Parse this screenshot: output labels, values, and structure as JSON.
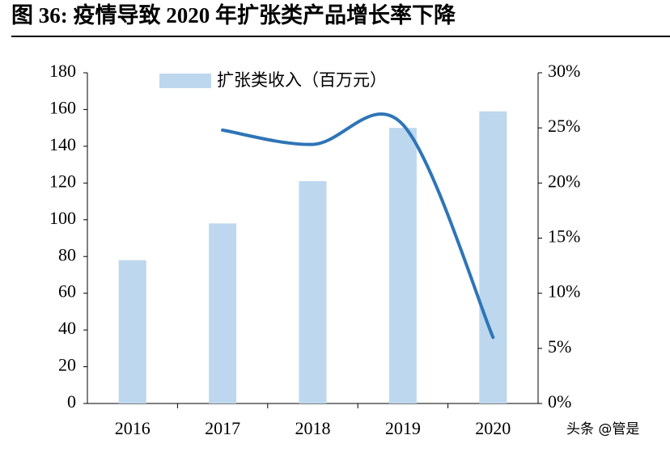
{
  "chart_data": {
    "type": "bar",
    "title": "图 36:  疫情导致 2020 年扩张类产品增长率下降",
    "watermark": "头条 @管是",
    "categories": [
      "2016",
      "2017",
      "2018",
      "2019",
      "2020"
    ],
    "series": [
      {
        "name": "扩张类收入（百万元）",
        "type": "bar",
        "color": "#bdd7ee",
        "values": [
          78,
          98,
          121,
          150,
          159
        ]
      },
      {
        "type": "line",
        "axis": "y2",
        "color": "#2e75b6",
        "values": [
          null,
          24.8,
          23.5,
          25.3,
          6
        ]
      }
    ],
    "ylim": [
      0,
      180
    ],
    "yticks": [
      0,
      20,
      40,
      60,
      80,
      100,
      120,
      140,
      160,
      180
    ],
    "y2lim": [
      0,
      30
    ],
    "y2ticks": [
      {
        "value": 0,
        "label": "0%"
      },
      {
        "value": 5,
        "label": "5%"
      },
      {
        "value": 10,
        "label": "10%"
      },
      {
        "value": 15,
        "label": "15%"
      },
      {
        "value": 20,
        "label": "20%"
      },
      {
        "value": 25,
        "label": "25%"
      },
      {
        "value": 30,
        "label": "30%"
      }
    ],
    "legend": "top"
  }
}
